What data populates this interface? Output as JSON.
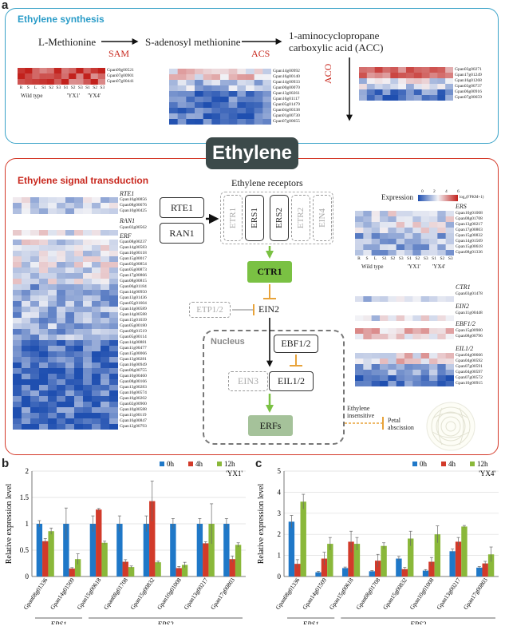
{
  "panel_a": {
    "letter": "a",
    "synthesis": {
      "title": "Ethylene synthesis",
      "met": "L-Methionine",
      "sam_enzyme": "SAM",
      "sam": "S-adenosyl methionine",
      "acs_enzyme": "ACS",
      "acc_line1": "1-aminocyclopropane",
      "acc_line2": "carboxylic acid (ACC)",
      "aco_enzyme": "ACO",
      "sam_genes": [
        "Gpan09g00521",
        "Gpan07g00901",
        "Gpan07g00441"
      ],
      "acs_genes": [
        "Gpan14g00992",
        "Gpan16g00140",
        "Gpan14g00933",
        "Gpan00g00070",
        "Gpan13g00261",
        "Gpan16g01117",
        "Gpan05g01479",
        "Gpan04g00338",
        "Gpan01g00730",
        "Gpan07g00655"
      ],
      "aco_genes": [
        "Gpan03g00271",
        "Gpan17g01249",
        "Gpan16g01268",
        "Gpan03g00737",
        "Gpan06g00916",
        "Gpan07g00659"
      ],
      "sample_labels": [
        "R",
        "S",
        "L",
        "S1",
        "S2",
        "S3",
        "S1",
        "S2",
        "S3",
        "S1",
        "S2",
        "S3"
      ],
      "group_labels": [
        "Wild type",
        "'YX1'",
        "'YX4'"
      ]
    },
    "ethylene": "Ethylene",
    "signal": {
      "title": "Ethylene signal transduction",
      "rte1_title": "RTE1",
      "rte1_genes": [
        "Gpan16g00856",
        "Gpan08g00676",
        "Gpan10g00425"
      ],
      "ran1_title": "RAN1",
      "ran1_genes": [
        "Gpan02g00562"
      ],
      "erf_title": "ERF",
      "erf_genes": [
        "Gpan08g00237",
        "Gpan14g00583",
        "Gpan16g00118",
        "Gpan15g00017",
        "Gpan03g00854",
        "Gpan05g00873",
        "Gpan17g00866",
        "Gpan08g00815",
        "Gpan06g01184",
        "Gpan14g00950",
        "Gpan13g01436",
        "Gpan05g01604",
        "Gpan14g00589",
        "Gpan14g00588",
        "Gpan15g01039",
        "Gpan05g00180",
        "Gpan09g01519",
        "Gpan05g00114",
        "Gpan14g00881",
        "Gpan11g00477",
        "Gpan15g00066",
        "Gpan13g00281",
        "Gpan16g00949",
        "Gpan06g00755",
        "Gpan10g00460",
        "Gpan08g00166",
        "Gpan13g00283",
        "Gpan16g00574",
        "Gpan16g00202",
        "Gpan02g00900",
        "Gpan10g00588",
        "Gpan11g00119",
        "Gpan16g00847",
        "Gpan12g00793"
      ],
      "legend_title": "Expression",
      "legend_ticks": [
        "0",
        "2",
        "4",
        "6"
      ],
      "legend_unit": "log₂(FPKM+1)",
      "ers_title": "ERS",
      "ers_genes": [
        "Gpan10g01008",
        "Gpan08g01708",
        "Gpan13g00217",
        "Gpan17g00803",
        "Gpan15g00832",
        "Gpan14g01509",
        "Gpan15g00618",
        "Gpan08g01336"
      ],
      "ctr1_title": "CTR1",
      "ctr1_genes": [
        "Gpan03g01478"
      ],
      "ein2_title": "EIN2",
      "ein2_genes": [
        "Gpan11g00448"
      ],
      "ebf_title": "EBF1/2",
      "ebf_genes": [
        "Gpan15g00980",
        "Gpan08g00796"
      ],
      "eil_title": "EIL1/2",
      "eil_genes": [
        "Gpan04g00666",
        "Gpan04g00592",
        "Gpan07g00591",
        "Gpan04g00597",
        "Gpan07g00572",
        "Gpan10g00915"
      ],
      "node_rte1": "RTE1",
      "node_ran1": "RAN1",
      "receptors_title": "Ethylene receptors",
      "receptors": [
        "ETR1",
        "ERS1",
        "ERS2",
        "ETR2",
        "EIN4"
      ],
      "ctr1": "CTR1",
      "etp": "ETP1/2",
      "ein2": "EIN2",
      "nucleus": "Nucleus",
      "ebf": "EBF1/2",
      "ein3": "EIN3",
      "eil": "EIL1/2",
      "erfs": "ERFs",
      "legend_insensitive": "Ethylene\ninsensitive",
      "legend_abscission": "Petal\nabscission"
    }
  },
  "panel_b": {
    "letter": "b",
    "chart_data": {
      "type": "bar",
      "ylabel": "Relative expression level",
      "ylim": [
        0,
        2
      ],
      "yticks": [
        0,
        0.5,
        1,
        1.5,
        2
      ],
      "cultivar": "'YX1'",
      "categories": [
        "Gpan08g01336",
        "Gpan14g01509",
        "Gpan15g00618",
        "Gpan08g01708",
        "Gpan15g00832",
        "Gpan10g01008",
        "Gpan13g00217",
        "Gpan17g00803"
      ],
      "groups": [
        {
          "label": "ERS1",
          "from": 0,
          "to": 1
        },
        {
          "label": "ERS2",
          "from": 2,
          "to": 7
        }
      ],
      "series": [
        {
          "name": "0h",
          "color": "#1f78c8",
          "values": [
            1.0,
            1.0,
            1.0,
            1.0,
            1.0,
            1.0,
            1.0,
            1.0
          ],
          "errors": [
            0.06,
            0.3,
            0.15,
            0.15,
            0.15,
            0.1,
            0.1,
            0.1
          ]
        },
        {
          "name": "4h",
          "color": "#d23a2a",
          "values": [
            0.67,
            0.15,
            1.27,
            0.28,
            1.43,
            0.16,
            0.63,
            0.33
          ],
          "errors": [
            0.05,
            0.02,
            0.02,
            0.04,
            0.38,
            0.03,
            0.03,
            0.06
          ]
        },
        {
          "name": "12h",
          "color": "#8ab83a",
          "values": [
            0.86,
            0.33,
            0.64,
            0.18,
            0.27,
            0.22,
            1.0,
            0.6
          ],
          "errors": [
            0.06,
            0.1,
            0.03,
            0.02,
            0.02,
            0.05,
            0.38,
            0.04
          ]
        }
      ]
    }
  },
  "panel_c": {
    "letter": "c",
    "chart_data": {
      "type": "bar",
      "ylabel": "Relative expression level",
      "ylim": [
        0,
        5
      ],
      "yticks": [
        0,
        1,
        2,
        3,
        4,
        5
      ],
      "cultivar": "'YX4'",
      "categories": [
        "Gpan08g01336",
        "Gpan14g01509",
        "Gpan15g00618",
        "Gpan08g01708",
        "Gpan15g00832",
        "Gpan10g01008",
        "Gpan13g00217",
        "Gpan17g00803"
      ],
      "groups": [
        {
          "label": "ERS1",
          "from": 0,
          "to": 1
        },
        {
          "label": "ERS2",
          "from": 2,
          "to": 7
        }
      ],
      "series": [
        {
          "name": "0h",
          "color": "#1f78c8",
          "values": [
            2.6,
            0.2,
            0.4,
            0.25,
            0.85,
            0.28,
            1.2,
            0.42
          ],
          "errors": [
            0.3,
            0.05,
            0.05,
            0.03,
            0.1,
            0.05,
            0.1,
            0.05
          ]
        },
        {
          "name": "4h",
          "color": "#d23a2a",
          "values": [
            0.6,
            0.85,
            1.65,
            0.75,
            0.35,
            0.7,
            1.65,
            0.62
          ],
          "errors": [
            0.2,
            0.3,
            0.5,
            0.3,
            0.08,
            0.2,
            0.2,
            0.1
          ]
        },
        {
          "name": "12h",
          "color": "#8ab83a",
          "values": [
            3.55,
            1.55,
            1.55,
            1.45,
            1.8,
            2.0,
            2.37,
            1.05
          ],
          "errors": [
            0.35,
            0.3,
            0.3,
            0.15,
            0.35,
            0.4,
            0.05,
            0.35
          ]
        }
      ]
    }
  }
}
